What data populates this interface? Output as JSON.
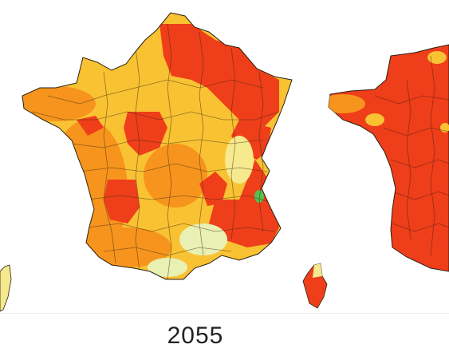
{
  "caption": {
    "year": "2055"
  },
  "legend_colors": {
    "very_high": "#ef3e1a",
    "high": "#f7941d",
    "medium": "#f9c233",
    "low": "#f6e98e",
    "very_low": "#e9f0b4",
    "minimal": "#53c251"
  },
  "maps": [
    {
      "id": "center",
      "dominant": "mixed"
    },
    {
      "id": "right",
      "dominant": "very_high"
    }
  ]
}
